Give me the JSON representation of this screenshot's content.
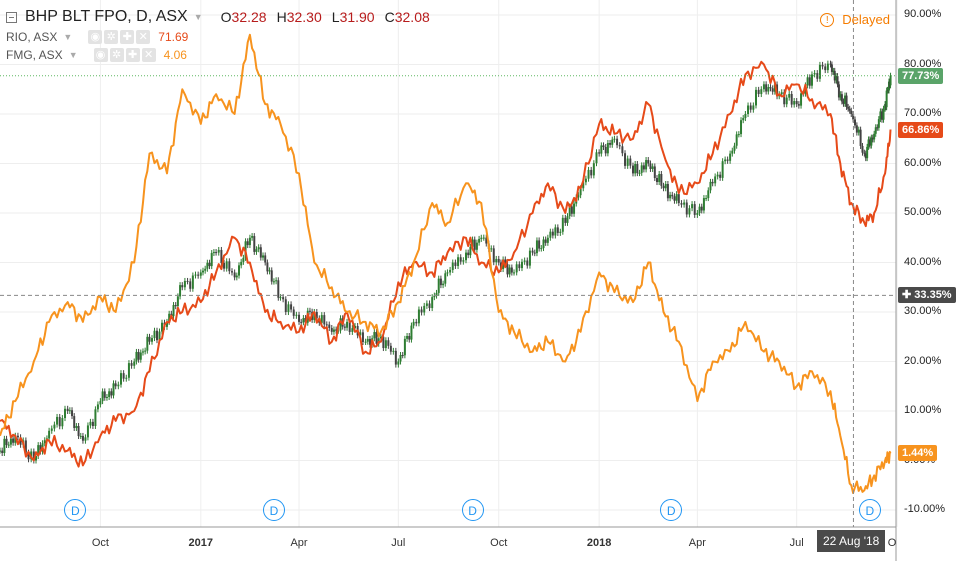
{
  "header": {
    "symbol": "BHP BLT FPO, D, ASX",
    "ohlc": [
      {
        "k": "O",
        "v": "32.28"
      },
      {
        "k": "H",
        "v": "32.30"
      },
      {
        "k": "L",
        "v": "31.90"
      },
      {
        "k": "C",
        "v": "32.08"
      }
    ],
    "delayed_label": "Delayed"
  },
  "compare": [
    {
      "symbol": "RIO, ASX",
      "value": "71.69",
      "color": "#e64a19"
    },
    {
      "symbol": "FMG, ASX",
      "value": "4.06",
      "color": "#f7931e"
    }
  ],
  "crosshair": {
    "value_label": "33.35%",
    "date_label": "22 Aug '18"
  },
  "dividend_marker_label": "D",
  "chart_data": {
    "type": "line",
    "title": "BHP BLT FPO, D, ASX",
    "x_range": [
      "2016-07-01",
      "2018-09-30"
    ],
    "ylim": [
      -12,
      92
    ],
    "grid": true,
    "y_ticks": [
      "90.00%",
      "80.00%",
      "70.00%",
      "60.00%",
      "50.00%",
      "40.00%",
      "30.00%",
      "20.00%",
      "10.00%",
      "0.00%",
      "-10.00%"
    ],
    "y_tick_values": [
      90,
      80,
      70,
      60,
      50,
      40,
      30,
      20,
      10,
      0,
      -10
    ],
    "x_ticks": [
      {
        "label": "Oct",
        "date": "2016-10-01"
      },
      {
        "label": "2017",
        "date": "2017-01-01",
        "bold": true
      },
      {
        "label": "Apr",
        "date": "2017-04-01"
      },
      {
        "label": "Jul",
        "date": "2017-07-01"
      },
      {
        "label": "Oct",
        "date": "2017-10-01"
      },
      {
        "label": "2018",
        "date": "2018-01-01",
        "bold": true
      },
      {
        "label": "Apr",
        "date": "2018-04-01"
      },
      {
        "label": "Jul",
        "date": "2018-07-01"
      },
      {
        "label": "O",
        "date": "2018-10-01"
      }
    ],
    "dividend_dates": [
      "2016-09-08",
      "2017-03-09",
      "2017-09-07",
      "2018-03-08",
      "2018-09-06"
    ],
    "series": [
      {
        "name": "BHP BLT FPO",
        "style": "candles",
        "color": "#2e7d32",
        "last_label": "77.73%",
        "points": [
          [
            "2016-07-01",
            2
          ],
          [
            "2016-07-15",
            5
          ],
          [
            "2016-08-01",
            0
          ],
          [
            "2016-08-15",
            6
          ],
          [
            "2016-09-01",
            10
          ],
          [
            "2016-09-15",
            4
          ],
          [
            "2016-10-01",
            12
          ],
          [
            "2016-10-15",
            15
          ],
          [
            "2016-11-01",
            20
          ],
          [
            "2016-11-15",
            24
          ],
          [
            "2016-12-01",
            28
          ],
          [
            "2016-12-15",
            35
          ],
          [
            "2017-01-01",
            38
          ],
          [
            "2017-01-15",
            42
          ],
          [
            "2017-02-01",
            37
          ],
          [
            "2017-02-15",
            45
          ],
          [
            "2017-03-01",
            40
          ],
          [
            "2017-03-15",
            33
          ],
          [
            "2017-04-01",
            28
          ],
          [
            "2017-04-15",
            30
          ],
          [
            "2017-05-01",
            26
          ],
          [
            "2017-05-15",
            28
          ],
          [
            "2017-06-01",
            24
          ],
          [
            "2017-06-15",
            25
          ],
          [
            "2017-07-01",
            20
          ],
          [
            "2017-07-15",
            28
          ],
          [
            "2017-08-01",
            33
          ],
          [
            "2017-08-15",
            38
          ],
          [
            "2017-09-01",
            42
          ],
          [
            "2017-09-15",
            45
          ],
          [
            "2017-10-01",
            40
          ],
          [
            "2017-10-15",
            38
          ],
          [
            "2017-11-01",
            42
          ],
          [
            "2017-11-15",
            45
          ],
          [
            "2017-12-01",
            48
          ],
          [
            "2017-12-15",
            55
          ],
          [
            "2018-01-01",
            62
          ],
          [
            "2018-01-15",
            65
          ],
          [
            "2018-02-01",
            58
          ],
          [
            "2018-02-15",
            60
          ],
          [
            "2018-03-01",
            55
          ],
          [
            "2018-03-15",
            52
          ],
          [
            "2018-04-01",
            50
          ],
          [
            "2018-04-15",
            56
          ],
          [
            "2018-05-01",
            62
          ],
          [
            "2018-05-15",
            70
          ],
          [
            "2018-06-01",
            76
          ],
          [
            "2018-06-15",
            74
          ],
          [
            "2018-07-01",
            72
          ],
          [
            "2018-07-15",
            78
          ],
          [
            "2018-08-01",
            80
          ],
          [
            "2018-08-10",
            74
          ],
          [
            "2018-08-20",
            70
          ],
          [
            "2018-09-01",
            62
          ],
          [
            "2018-09-10",
            66
          ],
          [
            "2018-09-20",
            72
          ],
          [
            "2018-09-25",
            77.73
          ]
        ]
      },
      {
        "name": "RIO, ASX",
        "style": "line",
        "color": "#e64a19",
        "last_label": "66.86%",
        "points": [
          [
            "2016-07-01",
            8
          ],
          [
            "2016-07-15",
            5
          ],
          [
            "2016-08-01",
            0
          ],
          [
            "2016-08-15",
            4
          ],
          [
            "2016-09-01",
            2
          ],
          [
            "2016-09-15",
            -1
          ],
          [
            "2016-10-01",
            5
          ],
          [
            "2016-10-15",
            8
          ],
          [
            "2016-11-01",
            10
          ],
          [
            "2016-11-15",
            18
          ],
          [
            "2016-12-01",
            28
          ],
          [
            "2016-12-15",
            30
          ],
          [
            "2017-01-01",
            32
          ],
          [
            "2017-01-15",
            38
          ],
          [
            "2017-02-01",
            45
          ],
          [
            "2017-02-15",
            40
          ],
          [
            "2017-03-01",
            30
          ],
          [
            "2017-03-15",
            28
          ],
          [
            "2017-04-01",
            26
          ],
          [
            "2017-04-15",
            30
          ],
          [
            "2017-05-01",
            24
          ],
          [
            "2017-05-15",
            30
          ],
          [
            "2017-06-01",
            22
          ],
          [
            "2017-06-15",
            24
          ],
          [
            "2017-07-01",
            36
          ],
          [
            "2017-07-15",
            40
          ],
          [
            "2017-08-01",
            38
          ],
          [
            "2017-08-15",
            42
          ],
          [
            "2017-09-01",
            45
          ],
          [
            "2017-09-15",
            40
          ],
          [
            "2017-10-01",
            38
          ],
          [
            "2017-10-15",
            42
          ],
          [
            "2017-11-01",
            50
          ],
          [
            "2017-11-15",
            56
          ],
          [
            "2017-12-01",
            50
          ],
          [
            "2017-12-15",
            55
          ],
          [
            "2018-01-01",
            68
          ],
          [
            "2018-01-15",
            66
          ],
          [
            "2018-02-01",
            65
          ],
          [
            "2018-02-15",
            72
          ],
          [
            "2018-03-01",
            62
          ],
          [
            "2018-03-15",
            54
          ],
          [
            "2018-04-01",
            56
          ],
          [
            "2018-04-15",
            62
          ],
          [
            "2018-05-01",
            70
          ],
          [
            "2018-05-15",
            78
          ],
          [
            "2018-06-01",
            80
          ],
          [
            "2018-06-15",
            74
          ],
          [
            "2018-07-01",
            76
          ],
          [
            "2018-07-15",
            73
          ],
          [
            "2018-08-01",
            70
          ],
          [
            "2018-08-10",
            60
          ],
          [
            "2018-08-20",
            52
          ],
          [
            "2018-09-01",
            48
          ],
          [
            "2018-09-10",
            50
          ],
          [
            "2018-09-20",
            58
          ],
          [
            "2018-09-25",
            66.86
          ]
        ]
      },
      {
        "name": "FMG, ASX",
        "style": "line",
        "color": "#f7931e",
        "last_label": "1.44%",
        "points": [
          [
            "2016-07-01",
            5
          ],
          [
            "2016-07-15",
            12
          ],
          [
            "2016-08-01",
            20
          ],
          [
            "2016-08-15",
            28
          ],
          [
            "2016-09-01",
            32
          ],
          [
            "2016-09-15",
            28
          ],
          [
            "2016-10-01",
            33
          ],
          [
            "2016-10-15",
            30
          ],
          [
            "2016-11-01",
            40
          ],
          [
            "2016-11-15",
            62
          ],
          [
            "2016-12-01",
            58
          ],
          [
            "2016-12-15",
            75
          ],
          [
            "2017-01-01",
            68
          ],
          [
            "2017-01-15",
            74
          ],
          [
            "2017-02-01",
            70
          ],
          [
            "2017-02-15",
            86
          ],
          [
            "2017-03-01",
            72
          ],
          [
            "2017-03-15",
            68
          ],
          [
            "2017-04-01",
            58
          ],
          [
            "2017-04-15",
            40
          ],
          [
            "2017-05-01",
            35
          ],
          [
            "2017-05-15",
            30
          ],
          [
            "2017-06-01",
            28
          ],
          [
            "2017-06-15",
            26
          ],
          [
            "2017-07-01",
            32
          ],
          [
            "2017-07-15",
            40
          ],
          [
            "2017-08-01",
            52
          ],
          [
            "2017-08-15",
            48
          ],
          [
            "2017-09-01",
            56
          ],
          [
            "2017-09-15",
            52
          ],
          [
            "2017-10-01",
            30
          ],
          [
            "2017-10-15",
            26
          ],
          [
            "2017-11-01",
            22
          ],
          [
            "2017-11-15",
            24
          ],
          [
            "2017-12-01",
            20
          ],
          [
            "2017-12-15",
            26
          ],
          [
            "2018-01-01",
            38
          ],
          [
            "2018-01-15",
            34
          ],
          [
            "2018-02-01",
            32
          ],
          [
            "2018-02-15",
            40
          ],
          [
            "2018-03-01",
            30
          ],
          [
            "2018-03-15",
            24
          ],
          [
            "2018-04-01",
            12
          ],
          [
            "2018-04-15",
            20
          ],
          [
            "2018-05-01",
            22
          ],
          [
            "2018-05-15",
            28
          ],
          [
            "2018-06-01",
            22
          ],
          [
            "2018-06-15",
            20
          ],
          [
            "2018-07-01",
            15
          ],
          [
            "2018-07-15",
            18
          ],
          [
            "2018-08-01",
            14
          ],
          [
            "2018-08-10",
            5
          ],
          [
            "2018-08-20",
            -5
          ],
          [
            "2018-09-01",
            -6
          ],
          [
            "2018-09-10",
            -3
          ],
          [
            "2018-09-20",
            0
          ],
          [
            "2018-09-25",
            1.44
          ]
        ]
      }
    ]
  }
}
